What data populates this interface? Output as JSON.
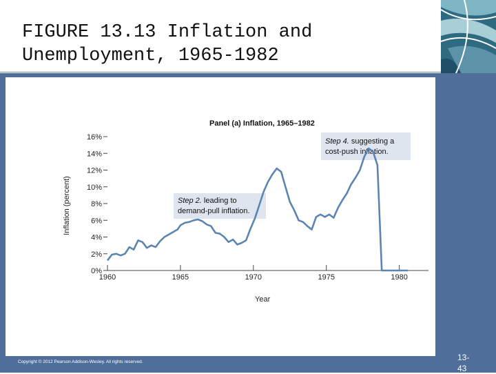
{
  "slide": {
    "title": "FIGURE 13.13  Inflation and\nUnemployment, 1965-1982",
    "copyright": "Copyright © 2012 Pearson Addison-Wesley. All rights reserved.",
    "slide_number": "13-\n43"
  },
  "colors": {
    "frame": "#4f6f9a",
    "line": "#5b84b1",
    "annotation_box": "#dfe5ee"
  },
  "chart_data": {
    "type": "line",
    "title": "Panel (a) Inflation, 1965–1982",
    "xlabel": "Year",
    "ylabel": "Inflation (percent)",
    "xlim": [
      1960,
      1982
    ],
    "ylim": [
      0,
      16
    ],
    "xticks": [
      1960,
      1965,
      1970,
      1975,
      1980
    ],
    "yticks": [
      0,
      2,
      4,
      6,
      8,
      10,
      12,
      14,
      16
    ],
    "ytick_suffix": "%",
    "grid": false,
    "annotations": [
      {
        "lines": [
          "Step 2. leading to",
          "demand-pull inflation."
        ],
        "italic_word": "Step 2."
      },
      {
        "lines": [
          "Step 4. suggesting a",
          "cost-push inflation."
        ],
        "italic_word": "Step 4."
      }
    ],
    "series": [
      {
        "x": [
          1960.0,
          1960.3,
          1960.6,
          1960.9,
          1961.2,
          1961.5,
          1961.8,
          1962.1,
          1962.4,
          1962.7,
          1963.0,
          1963.3,
          1963.6,
          1963.9,
          1964.2,
          1964.5,
          1964.8,
          1965.0,
          1965.3,
          1965.6,
          1965.9,
          1966.2,
          1966.5,
          1966.8,
          1967.1,
          1967.4,
          1967.7,
          1968.0,
          1968.3,
          1968.6,
          1968.9,
          1969.2,
          1969.5,
          1969.8,
          1970.1,
          1970.4,
          1970.7,
          1971.0,
          1971.3,
          1971.6,
          1971.9,
          1972.2,
          1972.5,
          1972.8,
          1973.1,
          1973.4,
          1973.7,
          1974.0,
          1974.3,
          1974.6,
          1974.9,
          1975.2,
          1975.5,
          1975.8,
          1976.1,
          1976.4,
          1976.7,
          1977.0,
          1977.3,
          1977.6,
          1977.9,
          1978.2,
          1978.5,
          1978.8,
          1979.1,
          1979.4,
          1979.7,
          1980.0,
          1980.3,
          1980.6,
          1980.9
        ],
        "values": [
          1.2,
          1.9,
          2.0,
          1.8,
          2.0,
          2.8,
          2.5,
          3.6,
          3.4,
          2.7,
          3.0,
          2.8,
          3.5,
          4.0,
          4.3,
          4.6,
          4.9,
          5.4,
          5.7,
          5.8,
          6.0,
          6.1,
          5.9,
          5.5,
          5.3,
          4.5,
          4.4,
          4.0,
          3.4,
          3.7,
          3.1,
          3.3,
          3.6,
          5.0,
          6.2,
          7.8,
          9.4,
          10.6,
          11.5,
          12.2,
          11.8,
          10.0,
          8.2,
          7.2,
          6.0,
          5.8,
          5.3,
          4.9,
          6.4,
          6.7,
          6.4,
          6.7,
          6.3,
          7.5,
          8.4,
          9.2,
          10.3,
          11.1,
          12.0,
          13.6,
          14.6,
          14.2,
          12.6,
          0,
          0,
          0,
          0,
          0,
          0,
          0,
          0
        ]
      }
    ]
  }
}
